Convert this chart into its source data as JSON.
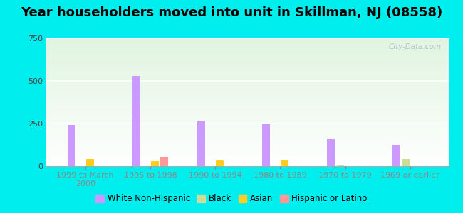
{
  "title": "Year householders moved into unit in Skillman, NJ (08558)",
  "categories": [
    "1999 to March\n2000",
    "1995 to 1998",
    "1990 to 1994",
    "1980 to 1989",
    "1970 to 1979",
    "1969 or earlier"
  ],
  "white_non_hispanic": [
    240,
    530,
    265,
    247,
    160,
    125
  ],
  "black": [
    0,
    0,
    0,
    0,
    5,
    40
  ],
  "asian": [
    40,
    30,
    35,
    35,
    0,
    0
  ],
  "hispanic_or_latino": [
    0,
    55,
    0,
    0,
    0,
    0
  ],
  "colors": {
    "white_non_hispanic": "#cc99ff",
    "black": "#ccdd99",
    "asian": "#ffcc22",
    "hispanic_or_latino": "#ff9999"
  },
  "ylim": [
    0,
    750
  ],
  "yticks": [
    0,
    250,
    500,
    750
  ],
  "bar_width": 0.12,
  "background_outer": "#00eeee",
  "title_fontsize": 13,
  "legend_fontsize": 8.5,
  "axis_label_fontsize": 8,
  "watermark": "City-Data.com"
}
